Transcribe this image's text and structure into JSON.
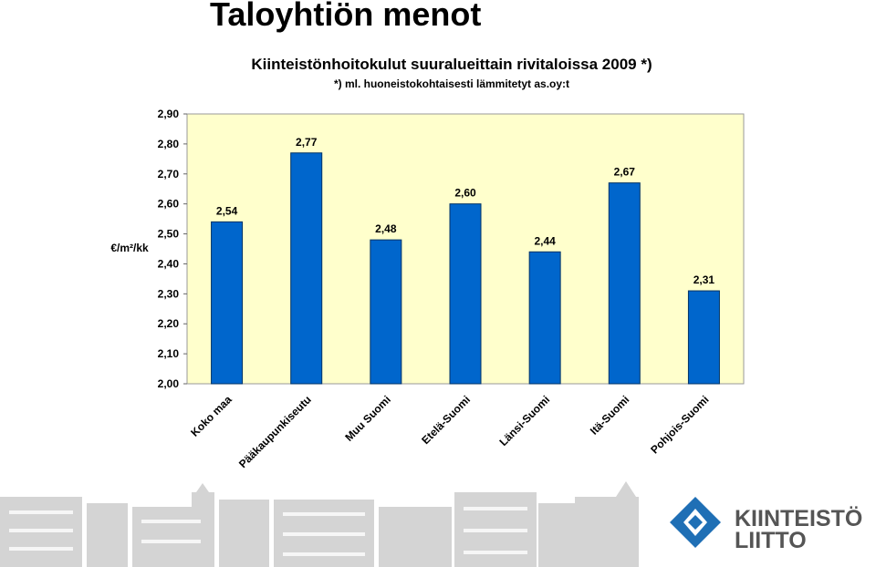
{
  "header": {
    "title": "Taloyhtiön menot"
  },
  "chart_data": {
    "type": "bar",
    "title": "Kiinteistönhoitokulut suuralueittain rivitaloissa 2009 *)",
    "subtitle": "*) ml. huoneistokohtaisesti lämmitetyt as.oy:t",
    "y_label": "€/m²/kk",
    "categories": [
      "Koko maa",
      "Pääkaupunkiseutu",
      "Muu Suomi",
      "Etelä-Suomi",
      "Länsi-Suomi",
      "Itä-Suomi",
      "Pohjois-Suomi"
    ],
    "values": [
      2.54,
      2.77,
      2.48,
      2.6,
      2.44,
      2.67,
      2.31
    ],
    "value_labels": [
      "2,54",
      "2,77",
      "2,48",
      "2,60",
      "2,44",
      "2,67",
      "2,31"
    ],
    "color": "#0066cc",
    "ylim": [
      2.0,
      2.9
    ],
    "yticks": [
      {
        "value": 2.0,
        "label": "2,00"
      },
      {
        "value": 2.1,
        "label": "2,10"
      },
      {
        "value": 2.2,
        "label": "2,20"
      },
      {
        "value": 2.3,
        "label": "2,30"
      },
      {
        "value": 2.4,
        "label": "2,40"
      },
      {
        "value": 2.5,
        "label": "2,50"
      },
      {
        "value": 2.6,
        "label": "2,60"
      },
      {
        "value": 2.7,
        "label": "2,70"
      },
      {
        "value": 2.8,
        "label": "2,80"
      },
      {
        "value": 2.9,
        "label": "2,90"
      }
    ]
  },
  "logo": {
    "lines": [
      "KIINTEISTÖ",
      "LIITTO"
    ]
  }
}
